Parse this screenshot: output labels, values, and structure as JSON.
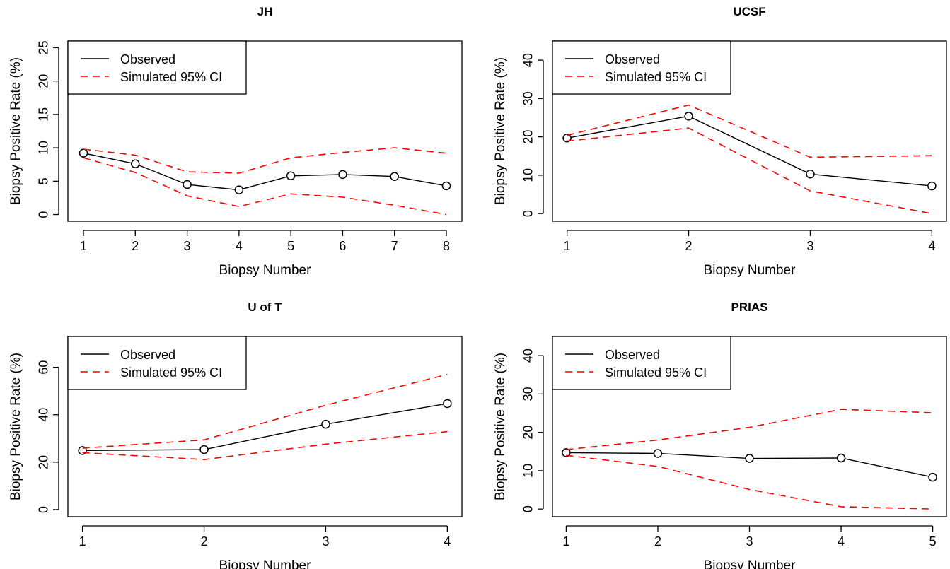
{
  "colors": {
    "observed": "#000000",
    "simulated": "#ff0000",
    "background": "#ffffff"
  },
  "legend": {
    "observed": "Observed",
    "simulated": "Simulated 95% CI"
  },
  "chart_data": [
    {
      "type": "line",
      "title": "JH",
      "xlabel": "Biopsy Number",
      "ylabel": "Biopsy Positive Rate (%)",
      "x": [
        1,
        2,
        3,
        4,
        5,
        6,
        7,
        8
      ],
      "xticks": [
        1,
        2,
        3,
        4,
        5,
        6,
        7,
        8
      ],
      "yticks": [
        0,
        5,
        10,
        15,
        20,
        25
      ],
      "xlim": [
        0.7,
        8.3
      ],
      "ylim": [
        -1,
        26
      ],
      "legend_position": "top-left",
      "series": [
        {
          "name": "Observed",
          "style": "solid-with-circles",
          "values": [
            9.2,
            7.6,
            4.5,
            3.7,
            5.8,
            6.0,
            5.7,
            4.3
          ]
        },
        {
          "name": "Simulated 95% CI",
          "style": "dashed",
          "values": [
            9.8,
            8.9,
            6.4,
            6.2,
            8.5,
            9.3,
            10.0,
            9.2
          ]
        },
        {
          "name": "Simulated 95% CI",
          "style": "dashed",
          "values": [
            8.5,
            6.3,
            2.8,
            1.2,
            3.1,
            2.6,
            1.4,
            0.0
          ]
        }
      ]
    },
    {
      "type": "line",
      "title": "UCSF",
      "xlabel": "Biopsy Number",
      "ylabel": "Biopsy Positive Rate (%)",
      "x": [
        1,
        2,
        3,
        4
      ],
      "xticks": [
        1,
        2,
        3,
        4
      ],
      "yticks": [
        0,
        10,
        20,
        30,
        40
      ],
      "xlim": [
        0.88,
        4.12
      ],
      "ylim": [
        -2,
        45
      ],
      "legend_position": "top-left",
      "series": [
        {
          "name": "Observed",
          "style": "solid-with-circles",
          "values": [
            19.7,
            25.4,
            10.3,
            7.2
          ]
        },
        {
          "name": "Simulated 95% CI",
          "style": "dashed",
          "values": [
            20.4,
            28.3,
            14.7,
            15.1
          ]
        },
        {
          "name": "Simulated 95% CI",
          "style": "dashed",
          "values": [
            18.9,
            22.3,
            5.9,
            0.0
          ]
        }
      ]
    },
    {
      "type": "line",
      "title": "U of T",
      "xlabel": "Biopsy Number",
      "ylabel": "Biopsy Positive Rate (%)",
      "x": [
        1,
        2,
        3,
        4
      ],
      "xticks": [
        1,
        2,
        3,
        4
      ],
      "yticks": [
        0,
        20,
        40,
        60
      ],
      "xlim": [
        0.88,
        4.12
      ],
      "ylim": [
        -3,
        73
      ],
      "legend_position": "top-left",
      "series": [
        {
          "name": "Observed",
          "style": "solid-with-circles",
          "values": [
            24.9,
            25.3,
            36.0,
            44.7
          ]
        },
        {
          "name": "Simulated 95% CI",
          "style": "dashed",
          "values": [
            25.9,
            29.4,
            44.0,
            57.0
          ]
        },
        {
          "name": "Simulated 95% CI",
          "style": "dashed",
          "values": [
            24.0,
            21.1,
            27.6,
            32.9
          ]
        }
      ]
    },
    {
      "type": "line",
      "title": "PRIAS",
      "xlabel": "Biopsy Number",
      "ylabel": "Biopsy Positive Rate (%)",
      "x": [
        1,
        2,
        3,
        4,
        5
      ],
      "xticks": [
        1,
        2,
        3,
        4,
        5
      ],
      "yticks": [
        0,
        10,
        20,
        30,
        40
      ],
      "xlim": [
        0.85,
        5.15
      ],
      "ylim": [
        -2,
        45
      ],
      "legend_position": "top-left",
      "series": [
        {
          "name": "Observed",
          "style": "solid-with-circles",
          "values": [
            14.7,
            14.5,
            13.2,
            13.3,
            8.3
          ]
        },
        {
          "name": "Simulated 95% CI",
          "style": "dashed",
          "values": [
            15.5,
            18.0,
            21.3,
            26.0,
            25.1
          ]
        },
        {
          "name": "Simulated 95% CI",
          "style": "dashed",
          "values": [
            14.0,
            11.1,
            5.1,
            0.6,
            0.0
          ]
        }
      ]
    }
  ]
}
